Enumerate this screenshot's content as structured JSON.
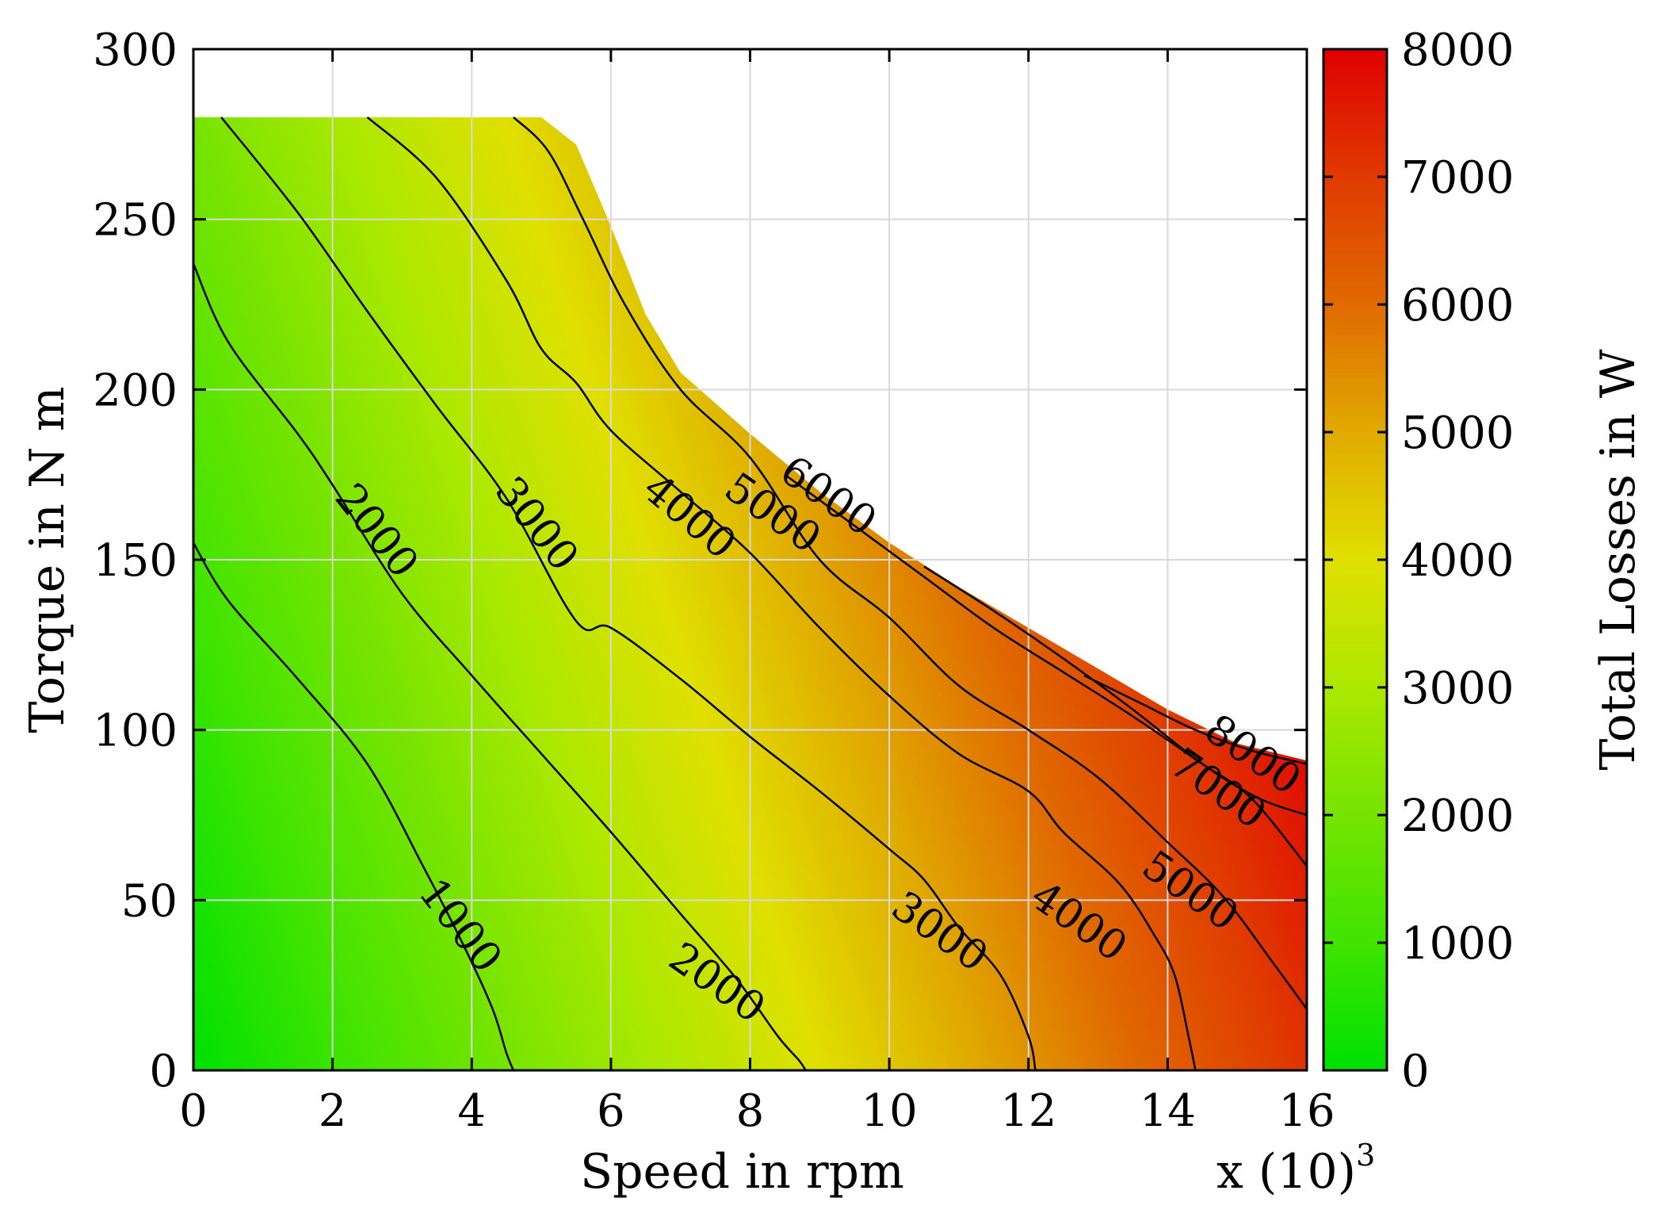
{
  "chart_data": {
    "type": "contour",
    "title": "",
    "xlabel": "Speed in rpm",
    "x_multiplier_label": "x (10)",
    "x_multiplier_exponent": "3",
    "ylabel": "Torque in N m",
    "colorbar_label": "Total Losses in W",
    "xlim": [
      0,
      16
    ],
    "ylim": [
      0,
      300
    ],
    "clim": [
      0,
      8000
    ],
    "x_ticks": [
      0,
      2,
      4,
      6,
      8,
      10,
      12,
      14,
      16
    ],
    "x_tick_labels": [
      "0",
      "2",
      "4",
      "6",
      "8",
      "10",
      "12",
      "14",
      "16"
    ],
    "y_ticks": [
      0,
      50,
      100,
      150,
      200,
      250,
      300
    ],
    "y_tick_labels": [
      "0",
      "50",
      "100",
      "150",
      "200",
      "250",
      "300"
    ],
    "colorbar_ticks": [
      0,
      1000,
      2000,
      3000,
      4000,
      5000,
      6000,
      7000,
      8000
    ],
    "colorbar_tick_labels": [
      "0",
      "1000",
      "2000",
      "3000",
      "4000",
      "5000",
      "6000",
      "7000",
      "8000"
    ],
    "grid": true,
    "colors": {
      "level_fills": [
        "#00e000",
        "#3fe400",
        "#75e400",
        "#ace800",
        "#e0e000",
        "#e0aa00",
        "#e06a00",
        "#e03a00",
        "#e00000"
      ],
      "colorbar_gradient": [
        "#00e000",
        "#3fe400",
        "#75e400",
        "#ace800",
        "#e0e000",
        "#e0aa00",
        "#e06a00",
        "#e03a00",
        "#e00000"
      ],
      "contour_line": "#000000",
      "grid": "#d9d9d9"
    },
    "operating_envelope": [
      [
        0,
        280
      ],
      [
        5.0,
        280
      ],
      [
        5.5,
        272
      ],
      [
        6.0,
        248
      ],
      [
        6.5,
        222
      ],
      [
        7.0,
        205
      ],
      [
        8.0,
        187
      ],
      [
        9.0,
        170
      ],
      [
        10.0,
        155
      ],
      [
        11.0,
        142
      ],
      [
        12.0,
        130
      ],
      [
        13.0,
        118
      ],
      [
        14.0,
        106
      ],
      [
        15.0,
        96
      ],
      [
        16.0,
        91
      ]
    ],
    "contours": [
      {
        "level": 1000,
        "label": "1000",
        "label_at": [
          3.8,
          42
        ],
        "label_angle": 52,
        "points": [
          [
            0,
            155
          ],
          [
            0.5,
            138
          ],
          [
            1.5,
            115
          ],
          [
            2.5,
            90
          ],
          [
            3.3,
            60
          ],
          [
            3.9,
            36
          ],
          [
            4.3,
            18
          ],
          [
            4.5,
            5
          ],
          [
            4.6,
            0
          ]
        ]
      },
      {
        "level": 2000,
        "label": "2000",
        "label_at": [
          2.6,
          158
        ],
        "label_angle": 52,
        "points": [
          [
            0,
            237
          ],
          [
            0.5,
            214
          ],
          [
            1.5,
            187
          ],
          [
            2.0,
            172
          ],
          [
            3.0,
            140
          ],
          [
            4.0,
            116
          ],
          [
            5.0,
            93
          ],
          [
            6.0,
            70
          ],
          [
            7.0,
            46
          ],
          [
            7.8,
            27
          ],
          [
            8.4,
            10
          ],
          [
            8.7,
            3
          ],
          [
            8.8,
            0
          ]
        ]
      },
      {
        "level": 2000,
        "label": "2000",
        "label_at": [
          7.5,
          25
        ],
        "label_angle": 35,
        "points": []
      },
      {
        "level": 3000,
        "label": "3000",
        "label_at": [
          4.9,
          160
        ],
        "label_angle": 52,
        "points": [
          [
            0.4,
            280
          ],
          [
            1.5,
            252
          ],
          [
            2.5,
            223
          ],
          [
            3.5,
            195
          ],
          [
            4.5,
            168
          ],
          [
            5.5,
            132
          ],
          [
            6.0,
            130
          ],
          [
            7.0,
            115
          ],
          [
            8.0,
            98
          ],
          [
            9.0,
            82
          ],
          [
            10.0,
            65
          ],
          [
            10.5,
            56
          ],
          [
            11.0,
            42
          ],
          [
            11.6,
            28
          ],
          [
            12.0,
            10
          ],
          [
            12.1,
            0
          ]
        ]
      },
      {
        "level": 3000,
        "label": "3000",
        "label_at": [
          10.7,
          40
        ],
        "label_angle": 35,
        "points": []
      },
      {
        "level": 4000,
        "label": "4000",
        "label_at": [
          7.1,
          162
        ],
        "label_angle": 40,
        "points": [
          [
            2.5,
            280
          ],
          [
            3.5,
            262
          ],
          [
            4.5,
            232
          ],
          [
            5.0,
            212
          ],
          [
            5.5,
            202
          ],
          [
            6.0,
            188
          ],
          [
            7.0,
            170
          ],
          [
            8.0,
            152
          ],
          [
            9.0,
            130
          ],
          [
            10.0,
            110
          ],
          [
            11.0,
            93
          ],
          [
            12.0,
            82
          ],
          [
            12.5,
            70
          ],
          [
            13.3,
            55
          ],
          [
            13.8,
            40
          ],
          [
            14.1,
            28
          ],
          [
            14.3,
            10
          ],
          [
            14.4,
            0
          ]
        ]
      },
      {
        "level": 4000,
        "label": "4000",
        "label_at": [
          12.7,
          43
        ],
        "label_angle": 35,
        "points": []
      },
      {
        "level": 5000,
        "label": "5000",
        "label_at": [
          8.3,
          163
        ],
        "label_angle": 35,
        "points": [
          [
            4.6,
            280
          ],
          [
            5.1,
            270
          ],
          [
            5.6,
            250
          ],
          [
            6.2,
            225
          ],
          [
            7.0,
            200
          ],
          [
            8.0,
            180
          ],
          [
            9.0,
            150
          ],
          [
            10.0,
            133
          ],
          [
            11.0,
            113
          ],
          [
            12.0,
            100
          ],
          [
            13.0,
            86
          ],
          [
            14.0,
            67
          ],
          [
            14.8,
            51
          ],
          [
            15.5,
            32
          ],
          [
            16.0,
            18
          ]
        ]
      },
      {
        "level": 5000,
        "label": "5000",
        "label_at": [
          14.3,
          52
        ],
        "label_angle": 35,
        "points": []
      },
      {
        "level": 6000,
        "label": "6000",
        "label_at": [
          9.1,
          168
        ],
        "label_angle": 35,
        "points": [
          [
            8.5,
            175
          ],
          [
            9.5,
            160
          ],
          [
            10.5,
            145
          ],
          [
            11.5,
            130
          ],
          [
            12.5,
            117
          ],
          [
            13.5,
            104
          ],
          [
            14.5,
            90
          ],
          [
            15.2,
            80
          ],
          [
            16.0,
            60
          ]
        ]
      },
      {
        "level": 7000,
        "label": "7000",
        "label_at": [
          14.7,
          82
        ],
        "label_angle": 35,
        "points": [
          [
            10.5,
            148
          ],
          [
            11.5,
            135
          ],
          [
            12.5,
            121
          ],
          [
            13.5,
            106
          ],
          [
            14.5,
            90
          ],
          [
            15.3,
            80
          ],
          [
            16.0,
            75
          ]
        ]
      },
      {
        "level": 8000,
        "label": "8000",
        "label_at": [
          15.2,
          92
        ],
        "label_angle": 35,
        "points": [
          [
            12.8,
            116
          ],
          [
            13.6,
            108
          ],
          [
            14.4,
            100
          ],
          [
            15.2,
            94
          ],
          [
            16.0,
            90
          ]
        ]
      }
    ]
  }
}
